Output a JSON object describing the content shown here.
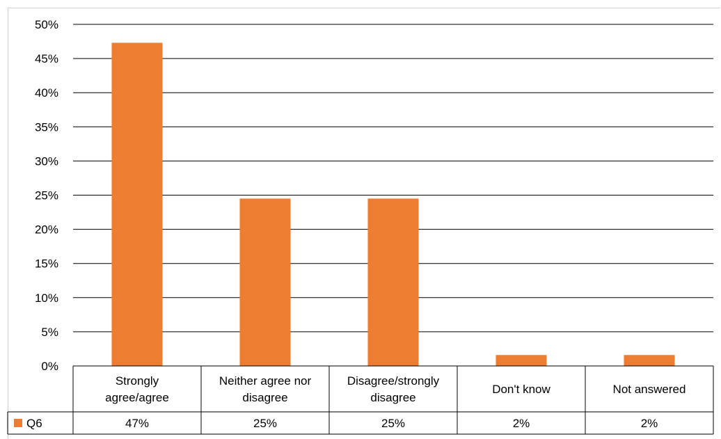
{
  "chart_data": {
    "type": "bar",
    "title": "",
    "xlabel": "",
    "ylabel": "",
    "ylim": [
      0,
      50
    ],
    "y_ticks": [
      "0%",
      "5%",
      "10%",
      "15%",
      "20%",
      "25%",
      "30%",
      "35%",
      "40%",
      "45%",
      "50%"
    ],
    "categories": [
      [
        "Strongly",
        "agree/agree"
      ],
      [
        "Neither agree nor",
        "disagree"
      ],
      [
        "Disagree/strongly",
        "disagree"
      ],
      [
        "Don't know"
      ],
      [
        "Not answered"
      ]
    ],
    "series": [
      {
        "name": "Q6",
        "color": "#ED7D31",
        "values": [
          47.3,
          24.5,
          24.5,
          1.6,
          1.6
        ],
        "labels": [
          "47%",
          "25%",
          "25%",
          "2%",
          "2%"
        ]
      }
    ],
    "grid": true,
    "legend": "data-table-left"
  }
}
